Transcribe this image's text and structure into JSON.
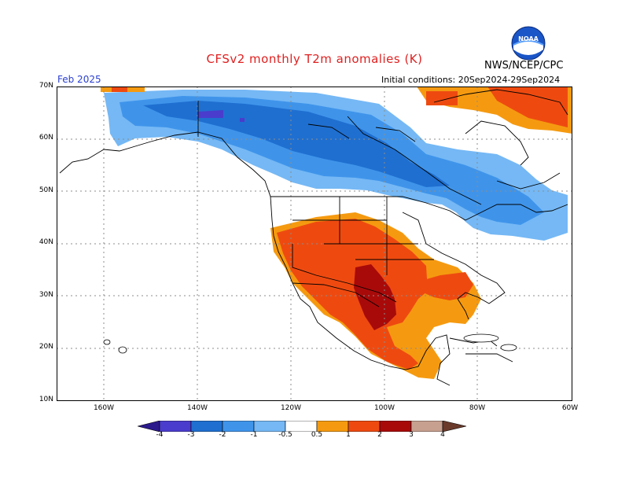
{
  "header": {
    "title": "CFSv2 monthly T2m anomalies (K)",
    "agency": "NWS/NCEP/CPC",
    "month": "Feb 2025",
    "initial_conditions": "Initial conditions: 20Sep2024-29Sep2024",
    "logo_text": "NOAA"
  },
  "map": {
    "lat_labels": [
      "70N",
      "60N",
      "50N",
      "40N",
      "30N",
      "20N",
      "10N"
    ],
    "lon_labels": [
      "160W",
      "140W",
      "120W",
      "100W",
      "80W",
      "60W"
    ]
  },
  "colorbar": {
    "labels": [
      "-4",
      "-3",
      "-2",
      "-1",
      "-0.5",
      "0.5",
      "1",
      "2",
      "3",
      "4"
    ],
    "colors": {
      "neg4": "#2b1a8c",
      "neg3": "#4a3ccc",
      "neg2": "#1f6fd0",
      "neg1": "#3f94ea",
      "neg05": "#75b8f5",
      "pos05": "#f59a10",
      "pos1": "#ee4a10",
      "pos2": "#a80a0a",
      "pos3": "#c8a090",
      "pos4": "#6a3a2a"
    }
  }
}
